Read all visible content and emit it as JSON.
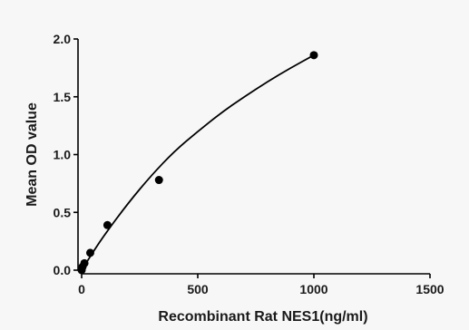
{
  "chart_data": {
    "type": "scatter",
    "title": "",
    "xlabel": "Recombinant Rat NES1(ng/ml)",
    "ylabel": "Mean OD value",
    "xlim": [
      0,
      1500
    ],
    "ylim": [
      0,
      2.0
    ],
    "x_ticks": [
      0,
      500,
      1000,
      1500
    ],
    "y_ticks": [
      0.0,
      0.5,
      1.0,
      1.5,
      2.0
    ],
    "x_tick_labels": [
      "0",
      "500",
      "1000",
      "1500"
    ],
    "y_tick_labels": [
      "0.0",
      "0.5",
      "1.0",
      "1.5",
      "2.0"
    ],
    "grid": false,
    "legend": "none",
    "series": [
      {
        "points": [
          {
            "x": 0,
            "y": 0.0
          },
          {
            "x": 4,
            "y": 0.03
          },
          {
            "x": 12,
            "y": 0.06
          },
          {
            "x": 37,
            "y": 0.15
          },
          {
            "x": 111,
            "y": 0.39
          },
          {
            "x": 333,
            "y": 0.78
          },
          {
            "x": 1000,
            "y": 1.86
          }
        ],
        "fit_curve": [
          {
            "x": 0,
            "y": 0.0
          },
          {
            "x": 50,
            "y": 0.16
          },
          {
            "x": 100,
            "y": 0.31
          },
          {
            "x": 200,
            "y": 0.58
          },
          {
            "x": 300,
            "y": 0.82
          },
          {
            "x": 400,
            "y": 1.03
          },
          {
            "x": 500,
            "y": 1.2
          },
          {
            "x": 600,
            "y": 1.36
          },
          {
            "x": 700,
            "y": 1.5
          },
          {
            "x": 800,
            "y": 1.63
          },
          {
            "x": 900,
            "y": 1.75
          },
          {
            "x": 1000,
            "y": 1.86
          }
        ]
      }
    ],
    "colors": {
      "marker": "#000000",
      "line": "#000000",
      "axis": "#000000"
    }
  }
}
